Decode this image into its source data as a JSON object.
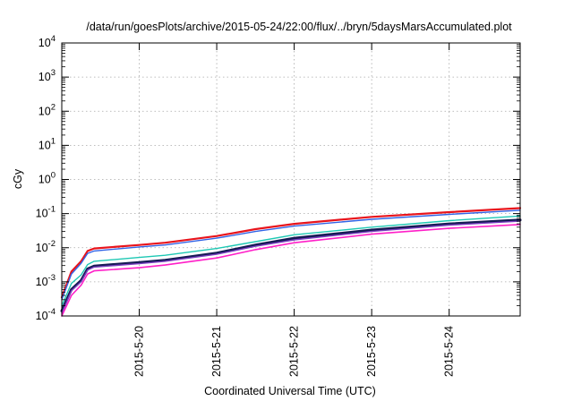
{
  "chart_data": {
    "type": "line",
    "title": "/data/run/goesPlots/archive/2015-05-24/22:00/flux/../bryn/5daysMarsAccumulated.plot",
    "xlabel": "Coordinated Universal Time (UTC)",
    "ylabel": "cGy",
    "y_scale": "log",
    "ylim": [
      0.0001,
      10000
    ],
    "xlim": [
      "2015-05-19 00:00",
      "2015-05-24 22:00"
    ],
    "x_ticks": [
      "2015-5-20",
      "2015-5-21",
      "2015-5-22",
      "2015-5-23",
      "2015-5-24"
    ],
    "y_ticks": [
      {
        "value": 0.0001,
        "base": "10",
        "exp": "-4"
      },
      {
        "value": 0.001,
        "base": "10",
        "exp": "-3"
      },
      {
        "value": 0.01,
        "base": "10",
        "exp": "-2"
      },
      {
        "value": 0.1,
        "base": "10",
        "exp": "-1"
      },
      {
        "value": 1,
        "base": "10",
        "exp": "0"
      },
      {
        "value": 10,
        "base": "10",
        "exp": "1"
      },
      {
        "value": 100,
        "base": "10",
        "exp": "2"
      },
      {
        "value": 1000,
        "base": "10",
        "exp": "3"
      },
      {
        "value": 10000,
        "base": "10",
        "exp": "4"
      }
    ],
    "grid": true,
    "legend": "none",
    "x": [
      "2015-05-19 00:00",
      "2015-05-19 03:00",
      "2015-05-19 06:00",
      "2015-05-19 08:00",
      "2015-05-19 10:00",
      "2015-05-20 00:00",
      "2015-05-20 08:00",
      "2015-05-21 00:00",
      "2015-05-21 12:00",
      "2015-05-22 00:00",
      "2015-05-23 00:00",
      "2015-05-24 00:00",
      "2015-05-24 22:00"
    ],
    "series": [
      {
        "color": "#e8141c",
        "width": 2.2,
        "values": [
          0.00035,
          0.002,
          0.004,
          0.008,
          0.0095,
          0.012,
          0.014,
          0.022,
          0.035,
          0.05,
          0.08,
          0.11,
          0.145
        ]
      },
      {
        "color": "#3264e6",
        "width": 1.4,
        "values": [
          0.0003,
          0.0017,
          0.0035,
          0.0068,
          0.008,
          0.0105,
          0.012,
          0.019,
          0.03,
          0.043,
          0.068,
          0.095,
          0.125
        ]
      },
      {
        "color": "#1ec8b4",
        "width": 1.4,
        "values": [
          0.0002,
          0.0009,
          0.0016,
          0.0032,
          0.004,
          0.0052,
          0.006,
          0.0095,
          0.015,
          0.024,
          0.04,
          0.062,
          0.085
        ]
      },
      {
        "color": "#161a55",
        "width": 3.0,
        "values": [
          0.00014,
          0.0006,
          0.0011,
          0.0024,
          0.0029,
          0.0037,
          0.0043,
          0.007,
          0.012,
          0.019,
          0.033,
          0.05,
          0.065
        ]
      },
      {
        "color": "#7a3fc0",
        "width": 1.4,
        "values": [
          0.00012,
          0.00055,
          0.001,
          0.0022,
          0.0027,
          0.0034,
          0.004,
          0.0064,
          0.011,
          0.017,
          0.03,
          0.046,
          0.06
        ]
      },
      {
        "color": "#ff1fc8",
        "width": 1.6,
        "values": [
          0.0001,
          0.0004,
          0.0008,
          0.0017,
          0.0021,
          0.0026,
          0.0031,
          0.005,
          0.0088,
          0.014,
          0.025,
          0.037,
          0.048
        ]
      }
    ]
  }
}
